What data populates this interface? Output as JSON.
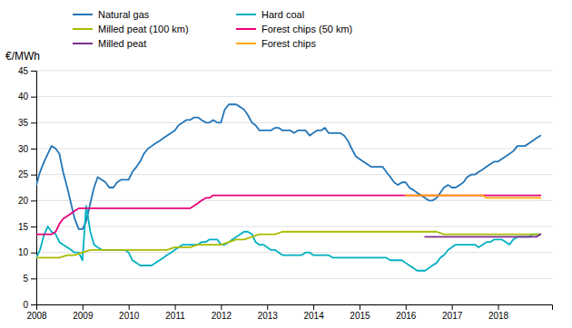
{
  "chart_data": {
    "type": "line",
    "y_label": "€/MWh",
    "xlim": [
      2008.0,
      2019.17
    ],
    "xticks": [
      2008,
      2009,
      2010,
      2011,
      2012,
      2013,
      2014,
      2015,
      2016,
      2017,
      2018
    ],
    "ylim": [
      0,
      45
    ],
    "yticks": [
      0,
      5,
      10,
      15,
      20,
      25,
      30,
      35,
      40,
      45
    ],
    "grid": "y",
    "legend": "top",
    "series": [
      {
        "name": "Natural gas",
        "color": "#2175B8",
        "x": [
          2008.0,
          2008.08,
          2008.17,
          2008.25,
          2008.33,
          2008.42,
          2008.5,
          2008.58,
          2008.67,
          2008.75,
          2008.83,
          2008.92,
          2009.0,
          2009.08,
          2009.17,
          2009.25,
          2009.33,
          2009.42,
          2009.5,
          2009.58,
          2009.67,
          2009.75,
          2009.83,
          2009.92,
          2010.0,
          2010.08,
          2010.17,
          2010.25,
          2010.33,
          2010.42,
          2010.5,
          2010.58,
          2010.67,
          2010.75,
          2010.83,
          2010.92,
          2011.0,
          2011.08,
          2011.17,
          2011.25,
          2011.33,
          2011.42,
          2011.5,
          2011.58,
          2011.67,
          2011.75,
          2011.83,
          2011.92,
          2012.0,
          2012.08,
          2012.17,
          2012.25,
          2012.33,
          2012.42,
          2012.5,
          2012.58,
          2012.67,
          2012.75,
          2012.83,
          2012.92,
          2013.0,
          2013.08,
          2013.17,
          2013.25,
          2013.33,
          2013.42,
          2013.5,
          2013.58,
          2013.67,
          2013.75,
          2013.83,
          2013.92,
          2014.0,
          2014.08,
          2014.17,
          2014.25,
          2014.33,
          2014.42,
          2014.5,
          2014.58,
          2014.67,
          2014.75,
          2014.83,
          2014.92,
          2015.0,
          2015.08,
          2015.17,
          2015.25,
          2015.33,
          2015.42,
          2015.5,
          2015.58,
          2015.67,
          2015.75,
          2015.83,
          2015.92,
          2016.0,
          2016.08,
          2016.17,
          2016.25,
          2016.33,
          2016.42,
          2016.5,
          2016.58,
          2016.67,
          2016.75,
          2016.83,
          2016.92,
          2017.0,
          2017.08,
          2017.17,
          2017.25,
          2017.33,
          2017.42,
          2017.5,
          2017.58,
          2017.67,
          2017.75,
          2017.83,
          2017.92,
          2018.0,
          2018.08,
          2018.17,
          2018.25,
          2018.33,
          2018.42,
          2018.5,
          2018.58,
          2018.67,
          2018.75,
          2018.83,
          2018.92
        ],
        "values": [
          23.0,
          25.5,
          27.5,
          29.0,
          30.5,
          30.0,
          29.0,
          25.5,
          22.5,
          19.5,
          16.5,
          14.5,
          14.5,
          16.0,
          19.5,
          22.5,
          24.5,
          24.0,
          23.5,
          22.5,
          22.5,
          23.5,
          24.0,
          24.0,
          24.0,
          25.5,
          26.5,
          27.5,
          29.0,
          30.0,
          30.5,
          31.0,
          31.5,
          32.0,
          32.5,
          33.0,
          33.5,
          34.5,
          35.0,
          35.5,
          35.5,
          36.0,
          36.0,
          35.5,
          35.0,
          35.0,
          35.5,
          35.0,
          35.0,
          37.5,
          38.5,
          38.5,
          38.5,
          38.0,
          37.5,
          36.5,
          35.0,
          34.5,
          33.5,
          33.5,
          33.5,
          33.5,
          34.0,
          34.0,
          33.5,
          33.5,
          33.5,
          33.0,
          33.5,
          33.5,
          33.5,
          32.5,
          33.0,
          33.5,
          33.5,
          34.0,
          33.0,
          33.0,
          33.0,
          33.0,
          32.5,
          31.5,
          30.0,
          28.5,
          28.0,
          27.5,
          27.0,
          26.5,
          26.5,
          26.5,
          26.5,
          25.5,
          24.5,
          23.5,
          23.0,
          23.5,
          23.5,
          22.5,
          22.0,
          21.5,
          21.0,
          20.5,
          20.0,
          20.0,
          20.5,
          21.5,
          22.5,
          23.0,
          22.5,
          22.5,
          23.0,
          23.5,
          24.5,
          25.0,
          25.0,
          25.5,
          26.0,
          26.5,
          27.0,
          27.5,
          27.5,
          28.0,
          28.5,
          29.0,
          29.5,
          30.5,
          30.5,
          30.5,
          31.0,
          31.5,
          32.0,
          32.5
        ]
      },
      {
        "name": "Hard coal",
        "color": "#00B0C0",
        "x": [
          2008.0,
          2008.08,
          2008.17,
          2008.25,
          2008.33,
          2008.42,
          2008.5,
          2008.58,
          2008.67,
          2008.75,
          2008.83,
          2008.92,
          2009.0,
          2009.08,
          2009.17,
          2009.25,
          2009.33,
          2009.42,
          2009.5,
          2009.58,
          2009.67,
          2009.75,
          2009.83,
          2009.92,
          2010.0,
          2010.08,
          2010.17,
          2010.25,
          2010.33,
          2010.42,
          2010.5,
          2010.58,
          2010.67,
          2010.75,
          2010.83,
          2010.92,
          2011.0,
          2011.08,
          2011.17,
          2011.25,
          2011.33,
          2011.42,
          2011.5,
          2011.58,
          2011.67,
          2011.75,
          2011.83,
          2011.92,
          2012.0,
          2012.08,
          2012.17,
          2012.25,
          2012.33,
          2012.42,
          2012.5,
          2012.58,
          2012.67,
          2012.75,
          2012.83,
          2012.92,
          2013.0,
          2013.08,
          2013.17,
          2013.25,
          2013.33,
          2013.42,
          2013.5,
          2013.58,
          2013.67,
          2013.75,
          2013.83,
          2013.92,
          2014.0,
          2014.08,
          2014.17,
          2014.25,
          2014.33,
          2014.42,
          2014.5,
          2014.58,
          2014.67,
          2014.75,
          2014.83,
          2014.92,
          2015.0,
          2015.08,
          2015.17,
          2015.25,
          2015.33,
          2015.42,
          2015.5,
          2015.58,
          2015.67,
          2015.75,
          2015.83,
          2015.92,
          2016.0,
          2016.08,
          2016.17,
          2016.25,
          2016.33,
          2016.42,
          2016.5,
          2016.58,
          2016.67,
          2016.75,
          2016.83,
          2016.92,
          2017.0,
          2017.08,
          2017.17,
          2017.25,
          2017.33,
          2017.42,
          2017.5,
          2017.58,
          2017.67,
          2017.75,
          2017.83,
          2017.92,
          2018.0,
          2018.08,
          2018.17,
          2018.25,
          2018.33,
          2018.42,
          2018.5,
          2018.58,
          2018.67,
          2018.75,
          2018.83,
          2018.92
        ],
        "values": [
          9.0,
          10.5,
          13.5,
          15.0,
          14.0,
          13.5,
          12.0,
          11.5,
          11.0,
          10.5,
          10.0,
          10.0,
          8.5,
          19.0,
          14.0,
          11.5,
          11.0,
          10.5,
          10.5,
          10.5,
          10.5,
          10.5,
          10.5,
          10.5,
          10.0,
          8.5,
          8.0,
          7.5,
          7.5,
          7.5,
          7.5,
          8.0,
          8.5,
          9.0,
          9.5,
          10.0,
          10.5,
          11.0,
          11.5,
          11.5,
          11.5,
          11.5,
          11.5,
          12.0,
          12.0,
          12.5,
          12.5,
          12.5,
          11.5,
          11.5,
          12.0,
          12.5,
          13.0,
          13.5,
          14.0,
          14.0,
          13.5,
          12.0,
          11.5,
          11.5,
          11.0,
          10.5,
          10.5,
          10.0,
          9.5,
          9.5,
          9.5,
          9.5,
          9.5,
          9.5,
          10.0,
          10.0,
          9.5,
          9.5,
          9.5,
          9.5,
          9.5,
          9.0,
          9.0,
          9.0,
          9.0,
          9.0,
          9.0,
          9.0,
          9.0,
          9.0,
          9.0,
          9.0,
          9.0,
          9.0,
          9.0,
          9.0,
          8.5,
          8.5,
          8.5,
          8.5,
          8.0,
          7.5,
          7.0,
          6.5,
          6.5,
          6.5,
          7.0,
          7.5,
          8.0,
          9.0,
          9.5,
          10.5,
          11.0,
          11.5,
          11.5,
          11.5,
          11.5,
          11.5,
          11.5,
          11.0,
          11.5,
          12.0,
          12.0,
          12.5,
          12.5,
          12.5,
          12.0,
          11.5,
          12.5,
          13.0,
          13.0,
          13.0,
          13.0,
          13.5,
          13.5,
          13.5
        ]
      },
      {
        "name": "Milled peat (100 km)",
        "color": "#AABB00",
        "x": [
          2008.0,
          2008.17,
          2008.33,
          2008.5,
          2008.67,
          2008.83,
          2009.0,
          2009.17,
          2009.33,
          2009.5,
          2009.67,
          2009.83,
          2010.0,
          2010.17,
          2010.33,
          2010.5,
          2010.67,
          2010.83,
          2011.0,
          2011.17,
          2011.33,
          2011.5,
          2011.67,
          2011.83,
          2012.0,
          2012.17,
          2012.33,
          2012.5,
          2012.67,
          2012.83,
          2013.0,
          2013.17,
          2013.33,
          2013.5,
          2013.67,
          2013.83,
          2014.0,
          2014.17,
          2014.33,
          2014.5,
          2014.67,
          2014.83,
          2015.0,
          2015.17,
          2015.33,
          2015.5,
          2015.67,
          2015.83,
          2016.0,
          2016.17,
          2016.33,
          2016.5,
          2016.67,
          2016.83,
          2017.0,
          2017.17,
          2017.33,
          2017.5,
          2017.67,
          2017.83,
          2018.0,
          2018.17,
          2018.33,
          2018.5,
          2018.67,
          2018.83,
          2018.92
        ],
        "values": [
          9.0,
          9.0,
          9.0,
          9.0,
          9.5,
          9.5,
          10.0,
          10.5,
          10.5,
          10.5,
          10.5,
          10.5,
          10.5,
          10.5,
          10.5,
          10.5,
          10.5,
          10.5,
          11.0,
          11.0,
          11.0,
          11.5,
          11.5,
          11.5,
          11.5,
          12.0,
          12.5,
          12.5,
          13.0,
          13.5,
          13.5,
          13.5,
          14.0,
          14.0,
          14.0,
          14.0,
          14.0,
          14.0,
          14.0,
          14.0,
          14.0,
          14.0,
          14.0,
          14.0,
          14.0,
          14.0,
          14.0,
          14.0,
          14.0,
          14.0,
          14.0,
          14.0,
          14.0,
          13.5,
          13.5,
          13.5,
          13.5,
          13.5,
          13.5,
          13.5,
          13.5,
          13.5,
          13.5,
          13.5,
          13.5,
          13.5,
          13.5
        ]
      },
      {
        "name": "Forest chips (50 km)",
        "color": "#E8007A",
        "x": [
          2008.0,
          2008.08,
          2008.17,
          2008.25,
          2008.33,
          2008.42,
          2008.5,
          2008.58,
          2008.67,
          2008.75,
          2008.83,
          2008.92,
          2009.0,
          2009.08,
          2009.17,
          2009.25,
          2009.33,
          2009.42,
          2009.5,
          2009.58,
          2009.67,
          2009.75,
          2009.83,
          2009.92,
          2010.0,
          2010.08,
          2010.17,
          2010.25,
          2010.33,
          2010.42,
          2010.5,
          2010.58,
          2010.67,
          2010.75,
          2010.83,
          2010.92,
          2011.0,
          2011.08,
          2011.17,
          2011.25,
          2011.33,
          2011.42,
          2011.5,
          2011.58,
          2011.67,
          2011.75,
          2011.83,
          2011.92,
          2012.0,
          2012.08,
          2012.17,
          2012.25,
          2012.33,
          2012.42,
          2012.5,
          2012.58,
          2012.67,
          2012.75,
          2012.83,
          2012.92,
          2013.0,
          2013.08,
          2013.17,
          2013.25,
          2013.33,
          2013.42,
          2013.5,
          2013.58,
          2013.67,
          2013.75,
          2013.83,
          2013.92,
          2014.0,
          2014.08,
          2014.17,
          2014.25,
          2014.33,
          2014.42,
          2014.5,
          2014.58,
          2014.67,
          2014.75,
          2014.83,
          2014.92,
          2015.0,
          2015.08,
          2015.17,
          2015.25,
          2015.33,
          2015.42,
          2015.5,
          2015.58,
          2015.67,
          2015.75,
          2015.83,
          2015.92,
          2016.0,
          2016.08,
          2016.17,
          2016.25,
          2016.33,
          2016.42,
          2016.5,
          2016.58,
          2016.67,
          2016.75,
          2016.83,
          2016.92,
          2017.0,
          2017.08,
          2017.17,
          2017.25,
          2017.33,
          2017.42,
          2017.5,
          2017.58,
          2017.67,
          2017.75,
          2017.83,
          2017.92,
          2018.0,
          2018.08,
          2018.17,
          2018.25,
          2018.33,
          2018.42,
          2018.5,
          2018.58,
          2018.67,
          2018.75,
          2018.83,
          2018.92
        ],
        "values": [
          13.5,
          13.5,
          13.5,
          13.5,
          13.5,
          14.0,
          15.5,
          16.5,
          17.0,
          17.5,
          18.0,
          18.5,
          18.5,
          18.5,
          18.5,
          18.5,
          18.5,
          18.5,
          18.5,
          18.5,
          18.5,
          18.5,
          18.5,
          18.5,
          18.5,
          18.5,
          18.5,
          18.5,
          18.5,
          18.5,
          18.5,
          18.5,
          18.5,
          18.5,
          18.5,
          18.5,
          18.5,
          18.5,
          18.5,
          18.5,
          18.5,
          19.0,
          19.5,
          20.0,
          20.5,
          20.5,
          21.0,
          21.0,
          21.0,
          21.0,
          21.0,
          21.0,
          21.0,
          21.0,
          21.0,
          21.0,
          21.0,
          21.0,
          21.0,
          21.0,
          21.0,
          21.0,
          21.0,
          21.0,
          21.0,
          21.0,
          21.0,
          21.0,
          21.0,
          21.0,
          21.0,
          21.0,
          21.0,
          21.0,
          21.0,
          21.0,
          21.0,
          21.0,
          21.0,
          21.0,
          21.0,
          21.0,
          21.0,
          21.0,
          21.0,
          21.0,
          21.0,
          21.0,
          21.0,
          21.0,
          21.0,
          21.0,
          21.0,
          21.0,
          21.0,
          21.0,
          21.0,
          21.0,
          21.0,
          21.0,
          21.0,
          21.0,
          21.0,
          21.0,
          21.0,
          21.0,
          21.0,
          21.0,
          21.0,
          21.0,
          21.0,
          21.0,
          21.0,
          21.0,
          21.0,
          21.0,
          21.0,
          21.0,
          21.0,
          21.0,
          21.0,
          21.0,
          21.0,
          21.0,
          21.0,
          21.0,
          21.0,
          21.0,
          21.0,
          21.0,
          21.0,
          21.0
        ]
      },
      {
        "name": "Milled peat",
        "color": "#7B2D8B",
        "x": [
          2016.42,
          2016.5,
          2016.58,
          2016.67,
          2016.75,
          2016.83,
          2016.92,
          2017.0,
          2017.08,
          2017.17,
          2017.25,
          2017.33,
          2017.42,
          2017.5,
          2017.58,
          2017.67,
          2017.75,
          2017.83,
          2017.92,
          2018.0,
          2018.08,
          2018.17,
          2018.25,
          2018.33,
          2018.42,
          2018.5,
          2018.58,
          2018.67,
          2018.75,
          2018.83,
          2018.92
        ],
        "values": [
          13.0,
          13.0,
          13.0,
          13.0,
          13.0,
          13.0,
          13.0,
          13.0,
          13.0,
          13.0,
          13.0,
          13.0,
          13.0,
          13.0,
          13.0,
          13.0,
          13.0,
          13.0,
          13.0,
          13.0,
          13.0,
          13.0,
          13.0,
          13.0,
          13.0,
          13.0,
          13.0,
          13.0,
          13.0,
          13.0,
          13.5
        ]
      },
      {
        "name": "Forest chips",
        "color": "#FFA500",
        "x": [
          2016.0,
          2016.08,
          2016.17,
          2016.25,
          2016.33,
          2016.42,
          2016.5,
          2016.58,
          2016.67,
          2016.75,
          2016.83,
          2016.92,
          2017.0,
          2017.08,
          2017.17,
          2017.25,
          2017.33,
          2017.42,
          2017.5,
          2017.58,
          2017.67,
          2017.75,
          2017.83,
          2017.92,
          2018.0,
          2018.08,
          2018.17,
          2018.25,
          2018.33,
          2018.42,
          2018.5,
          2018.58,
          2018.67,
          2018.75,
          2018.83,
          2018.92
        ],
        "values": [
          21.0,
          21.0,
          21.0,
          21.0,
          21.0,
          21.0,
          21.0,
          21.0,
          21.0,
          21.0,
          21.0,
          21.0,
          21.0,
          21.0,
          21.0,
          21.0,
          21.0,
          21.0,
          21.0,
          21.0,
          21.0,
          20.5,
          20.5,
          20.5,
          20.5,
          20.5,
          20.5,
          20.5,
          20.5,
          20.5,
          20.5,
          20.5,
          20.5,
          20.5,
          20.5,
          20.5
        ]
      }
    ]
  }
}
